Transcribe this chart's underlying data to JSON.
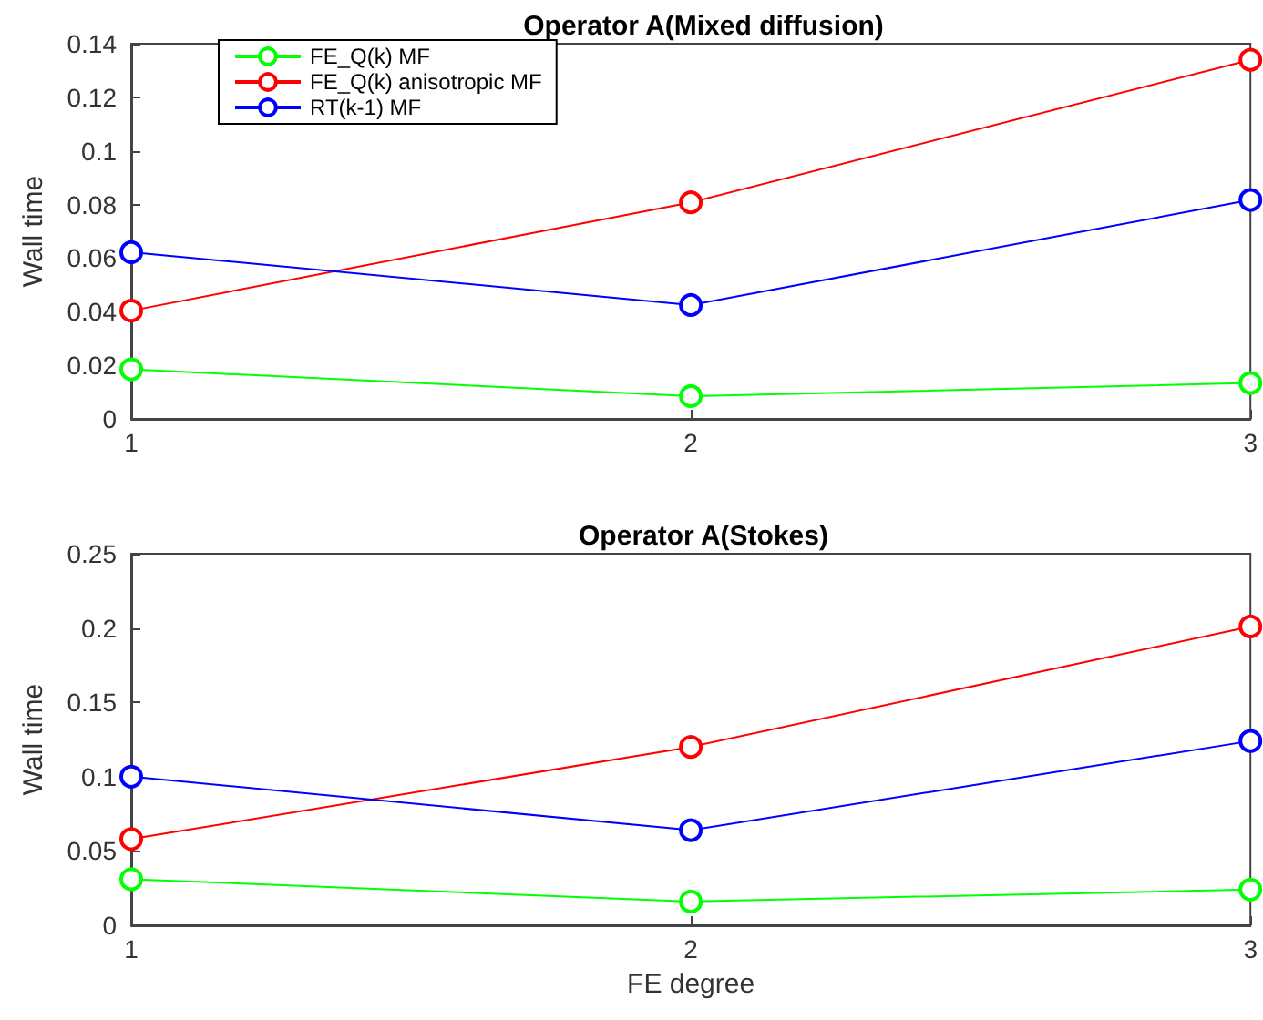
{
  "chart_data": [
    {
      "type": "line",
      "title": "Operator A(Mixed diffusion)",
      "ylabel": "Wall time",
      "x": [
        1,
        2,
        3
      ],
      "xlim": [
        1,
        3
      ],
      "xticks": [
        1,
        2,
        3
      ],
      "ylim": [
        0,
        0.14
      ],
      "yticks": [
        0,
        0.02,
        0.04,
        0.06,
        0.08,
        0.1,
        0.12,
        0.14
      ],
      "grid": false,
      "legend": "top left",
      "marker": "circle",
      "line_style": "solid",
      "series": [
        {
          "name": "FE_Q(k) MF",
          "color": "#00ff00",
          "values": [
            0.0185,
            0.0085,
            0.0134
          ]
        },
        {
          "name": "FE_Q(k) anisotropic MF",
          "color": "#ff0000",
          "values": [
            0.0404,
            0.0808,
            0.134
          ]
        },
        {
          "name": "RT(k-1) MF",
          "color": "#0000ff",
          "values": [
            0.0622,
            0.0425,
            0.0817
          ]
        }
      ]
    },
    {
      "type": "line",
      "title": "Operator A(Stokes)",
      "xlabel": "FE degree",
      "ylabel": "Wall time",
      "x": [
        1,
        2,
        3
      ],
      "xlim": [
        1,
        3
      ],
      "xticks": [
        1,
        2,
        3
      ],
      "ylim": [
        0,
        0.25
      ],
      "yticks": [
        0,
        0.05,
        0.1,
        0.15,
        0.2,
        0.25
      ],
      "grid": false,
      "legend": false,
      "marker": "circle",
      "line_style": "solid",
      "series": [
        {
          "color": "#00ff00",
          "values": [
            0.031,
            0.016,
            0.024
          ]
        },
        {
          "color": "#ff0000",
          "values": [
            0.058,
            0.12,
            0.201
          ]
        },
        {
          "color": "#0000ff",
          "values": [
            0.1,
            0.064,
            0.124
          ]
        }
      ]
    }
  ]
}
